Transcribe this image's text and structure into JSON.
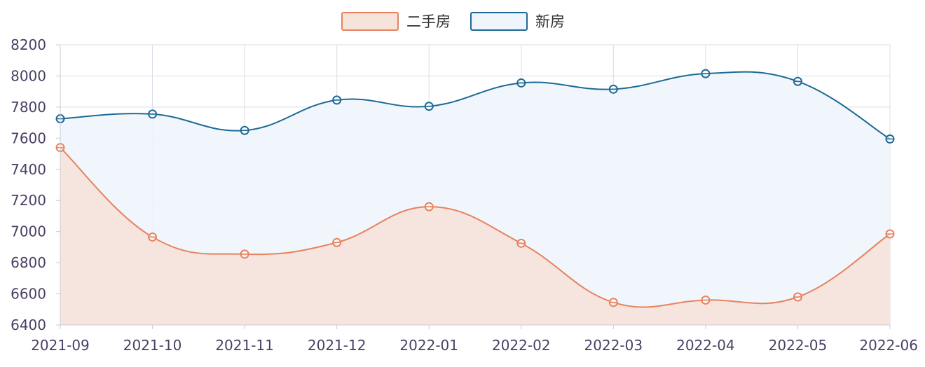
{
  "chart_data": {
    "type": "area",
    "x": [
      "2021-09",
      "2021-10",
      "2021-11",
      "2021-12",
      "2022-01",
      "2022-02",
      "2022-03",
      "2022-04",
      "2022-05",
      "2022-06"
    ],
    "series": [
      {
        "name": "二手房",
        "values": [
          7540,
          6965,
          6855,
          6930,
          7160,
          6925,
          6545,
          6560,
          6580,
          6985
        ],
        "color": "#e8825f",
        "fill": "#f6e3da"
      },
      {
        "name": "新房",
        "values": [
          7725,
          7755,
          7650,
          7845,
          7805,
          7955,
          7915,
          8015,
          7965,
          7595
        ],
        "color": "#1e6a94",
        "fill": "#eef5fc"
      }
    ],
    "ylim": [
      6400,
      8200
    ],
    "yticks": [
      6400,
      6600,
      6800,
      7000,
      7200,
      7400,
      7600,
      7800,
      8000,
      8200
    ],
    "grid": true,
    "legend_position": "top-center",
    "smooth": true
  }
}
